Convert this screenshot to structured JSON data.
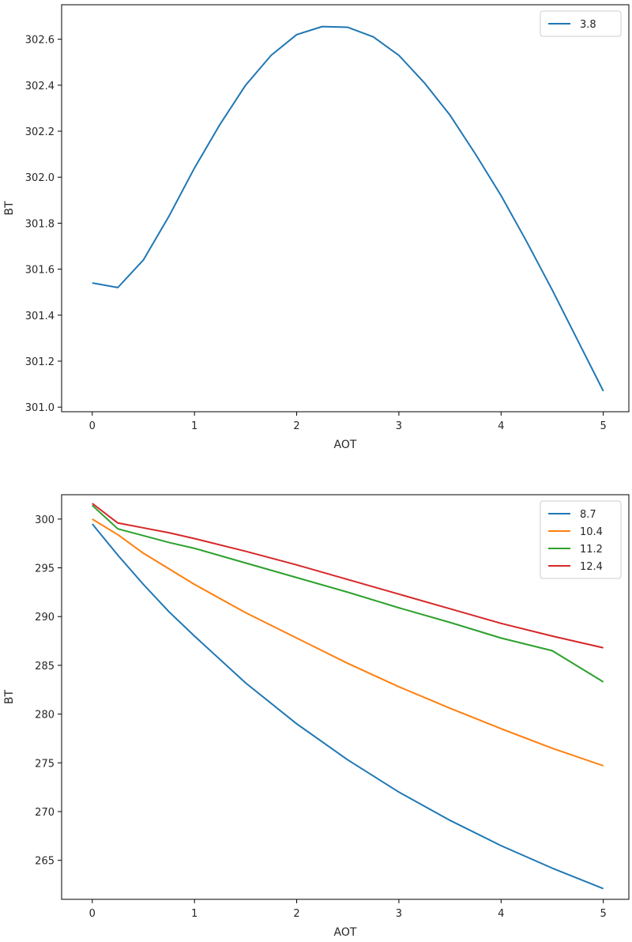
{
  "chart_data": [
    {
      "type": "line",
      "xlabel": "AOT",
      "ylabel": "BT",
      "xlim": [
        -0.3,
        5.25
      ],
      "ylim": [
        300.98,
        302.75
      ],
      "xticks": [
        0,
        1,
        2,
        3,
        4,
        5
      ],
      "yticks": [
        301.0,
        301.2,
        301.4,
        301.6,
        301.8,
        302.0,
        302.2,
        302.4,
        302.6
      ],
      "ytick_decimals": 1,
      "grid": false,
      "legend_position": "top-right",
      "x": [
        0,
        0.25,
        0.5,
        0.75,
        1.0,
        1.25,
        1.5,
        1.75,
        2.0,
        2.25,
        2.5,
        2.75,
        3.0,
        3.25,
        3.5,
        3.75,
        4.0,
        4.25,
        4.5,
        4.75,
        5.0
      ],
      "series": [
        {
          "name": "3.8",
          "color": "#1f77b4",
          "values": [
            301.54,
            301.52,
            301.64,
            301.83,
            302.04,
            302.23,
            302.4,
            302.53,
            302.62,
            302.655,
            302.652,
            302.61,
            302.53,
            302.41,
            302.27,
            302.1,
            301.92,
            301.72,
            301.51,
            301.29,
            301.07
          ]
        }
      ]
    },
    {
      "type": "line",
      "xlabel": "AOT",
      "ylabel": "BT",
      "xlim": [
        -0.3,
        5.25
      ],
      "ylim": [
        261.0,
        302.5
      ],
      "xticks": [
        0,
        1,
        2,
        3,
        4,
        5
      ],
      "yticks": [
        265,
        270,
        275,
        280,
        285,
        290,
        295,
        300
      ],
      "ytick_decimals": 0,
      "grid": false,
      "legend_position": "top-right",
      "x": [
        0,
        0.25,
        0.5,
        0.75,
        1.0,
        1.5,
        2.0,
        2.5,
        3.0,
        3.5,
        4.0,
        4.5,
        5.0
      ],
      "series": [
        {
          "name": "8.7",
          "color": "#1f77b4",
          "values": [
            299.5,
            296.3,
            293.3,
            290.5,
            288.0,
            283.2,
            279.0,
            275.3,
            272.0,
            269.1,
            266.5,
            264.2,
            262.1
          ]
        },
        {
          "name": "10.4",
          "color": "#ff7f0e",
          "values": [
            300.0,
            298.4,
            296.5,
            294.9,
            293.3,
            290.4,
            287.8,
            285.2,
            282.8,
            280.6,
            278.5,
            276.5,
            274.7
          ]
        },
        {
          "name": "11.2",
          "color": "#2ca02c",
          "values": [
            301.4,
            299.0,
            298.3,
            297.6,
            297.0,
            295.5,
            294.0,
            292.5,
            290.9,
            289.4,
            287.8,
            286.5,
            283.3
          ]
        },
        {
          "name": "12.4",
          "color": "#d62728",
          "values": [
            301.6,
            299.6,
            299.1,
            298.6,
            298.0,
            296.7,
            295.3,
            293.8,
            292.3,
            290.8,
            289.3,
            288.0,
            286.8
          ]
        }
      ]
    }
  ]
}
